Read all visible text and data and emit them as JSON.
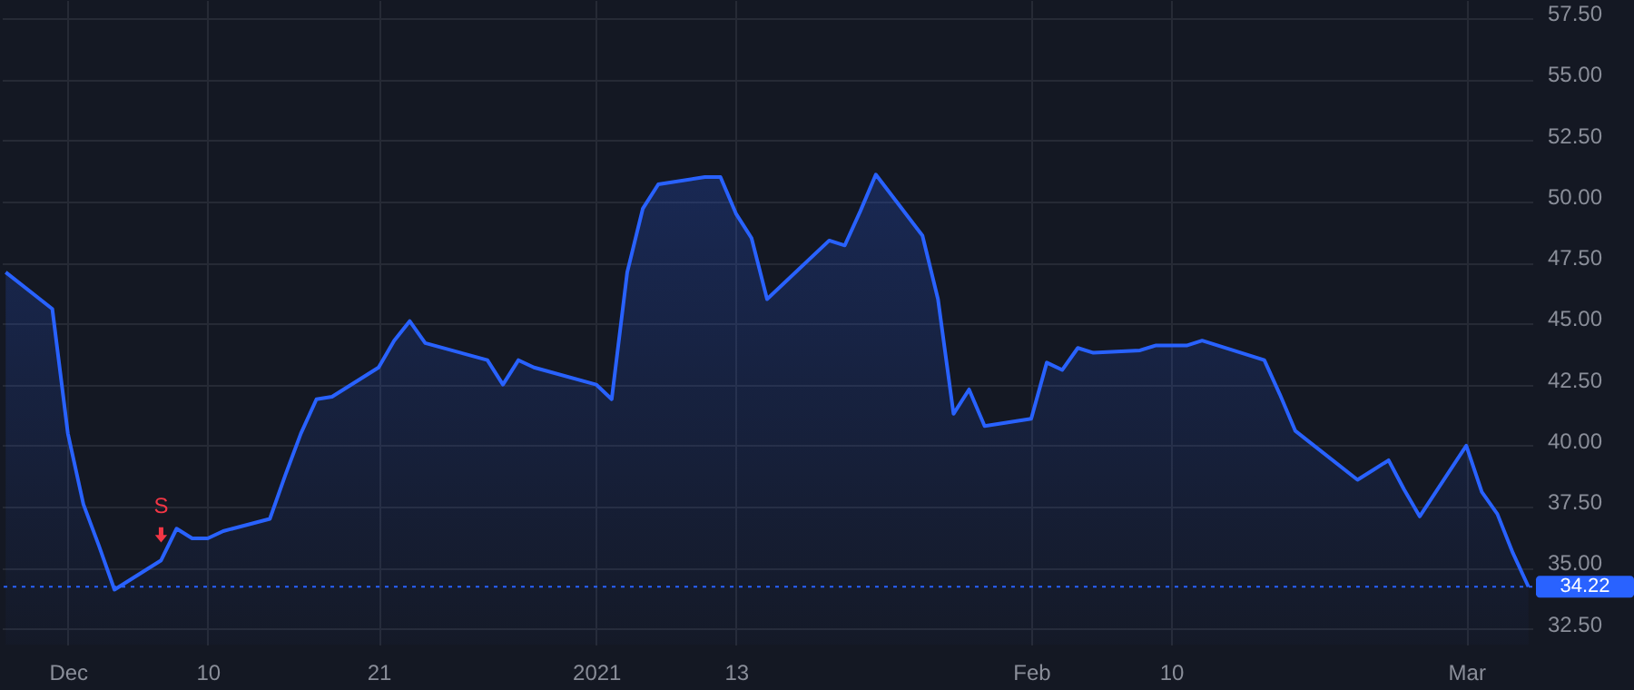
{
  "chart_data": {
    "type": "area",
    "x": [
      "2020-11-27",
      "2020-11-30",
      "2020-12-01",
      "2020-12-02",
      "2020-12-03",
      "2020-12-04",
      "2020-12-07",
      "2020-12-08",
      "2020-12-09",
      "2020-12-10",
      "2020-12-11",
      "2020-12-14",
      "2020-12-15",
      "2020-12-16",
      "2020-12-17",
      "2020-12-18",
      "2020-12-21",
      "2020-12-22",
      "2020-12-23",
      "2020-12-24",
      "2020-12-28",
      "2020-12-29",
      "2020-12-30",
      "2020-12-31",
      "2021-01-04",
      "2021-01-05",
      "2021-01-06",
      "2021-01-07",
      "2021-01-08",
      "2021-01-11",
      "2021-01-12",
      "2021-01-13",
      "2021-01-14",
      "2021-01-15",
      "2021-01-19",
      "2021-01-20",
      "2021-01-21",
      "2021-01-22",
      "2021-01-25",
      "2021-01-26",
      "2021-01-27",
      "2021-01-28",
      "2021-01-29",
      "2021-02-01",
      "2021-02-02",
      "2021-02-03",
      "2021-02-04",
      "2021-02-05",
      "2021-02-08",
      "2021-02-09",
      "2021-02-10",
      "2021-02-11",
      "2021-02-12",
      "2021-02-16",
      "2021-02-17",
      "2021-02-18",
      "2021-02-19",
      "2021-02-22",
      "2021-02-23",
      "2021-02-24",
      "2021-02-25",
      "2021-02-26",
      "2021-03-01",
      "2021-03-02",
      "2021-03-03",
      "2021-03-04",
      "2021-03-05"
    ],
    "series": [
      {
        "color": "#2962ff",
        "values": [
          47.1,
          45.6,
          40.5,
          37.6,
          35.9,
          34.1,
          35.3,
          36.6,
          36.2,
          36.2,
          36.5,
          37.0,
          38.8,
          40.5,
          41.9,
          42.0,
          43.2,
          44.3,
          45.1,
          44.2,
          43.5,
          42.5,
          43.5,
          43.2,
          42.5,
          41.9,
          47.1,
          49.7,
          50.7,
          51.0,
          51.0,
          49.5,
          48.5,
          46.0,
          48.4,
          48.2,
          49.6,
          51.1,
          48.6,
          46.0,
          41.3,
          42.3,
          40.8,
          41.1,
          43.4,
          43.1,
          44.0,
          43.8,
          43.9,
          44.1,
          44.1,
          44.1,
          44.3,
          43.5,
          42.1,
          40.6,
          40.1,
          38.6,
          39.0,
          39.4,
          38.2,
          37.1,
          40.0,
          38.1,
          37.2,
          35.6,
          34.22
        ]
      }
    ],
    "xlim": [
      "2020-11-26T18:00",
      "2021-03-05T06:00"
    ],
    "xticks": [
      {
        "value": "2020-12-01",
        "label": "Dec"
      },
      {
        "value": "2020-12-10",
        "label": "10"
      },
      {
        "value": "2020-12-21",
        "label": "21"
      },
      {
        "value": "2021-01-04",
        "label": "2021"
      },
      {
        "value": "2021-01-13",
        "label": "13"
      },
      {
        "value": "2021-02-01",
        "label": "Feb"
      },
      {
        "value": "2021-02-10",
        "label": "10"
      },
      {
        "value": "2021-03-01",
        "label": "Mar"
      }
    ],
    "ylim": [
      31.85,
      58.25
    ],
    "yticks": [
      {
        "value": 32.5,
        "label": "32.50"
      },
      {
        "value": 35,
        "label": "35.00"
      },
      {
        "value": 37.5,
        "label": "37.50"
      },
      {
        "value": 40,
        "label": "40.00"
      },
      {
        "value": 42.5,
        "label": "42.50"
      },
      {
        "value": 45,
        "label": "45.00"
      },
      {
        "value": 47.5,
        "label": "47.50"
      },
      {
        "value": 50,
        "label": "50.00"
      },
      {
        "value": 52.5,
        "label": "52.50"
      },
      {
        "value": 55,
        "label": "55.00"
      },
      {
        "value": 57.5,
        "label": "57.50"
      }
    ],
    "ref_lines": [
      {
        "axis": "y",
        "value": 34.22,
        "label": "34.22",
        "color": "#2962ff",
        "line_style": "dotted"
      }
    ],
    "annotations": [
      {
        "text": "S",
        "x": "2020-12-07",
        "y": 35.3
      }
    ],
    "grid": true,
    "line_style": "solid"
  }
}
